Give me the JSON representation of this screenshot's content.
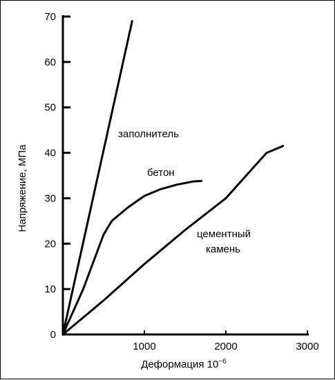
{
  "chart_data": {
    "type": "line",
    "title": "",
    "xlabel": "Деформация 10",
    "xlabel_exponent": "−6",
    "ylabel": "Напряжение, МПа",
    "xlim": [
      0,
      3000
    ],
    "ylim": [
      0,
      70
    ],
    "x_ticks": [
      1000,
      2000,
      3000
    ],
    "y_ticks": [
      0,
      10,
      20,
      30,
      40,
      50,
      60,
      70
    ],
    "grid": false,
    "legend": "none",
    "series": [
      {
        "label": "заполнитель",
        "points": [
          [
            0,
            0
          ],
          [
            850,
            69
          ]
        ]
      },
      {
        "label": "бетон",
        "points": [
          [
            0,
            0
          ],
          [
            250,
            10
          ],
          [
            500,
            22
          ],
          [
            600,
            25
          ],
          [
            800,
            28
          ],
          [
            1000,
            30.5
          ],
          [
            1200,
            32
          ],
          [
            1400,
            33
          ],
          [
            1600,
            33.7
          ],
          [
            1700,
            33.8
          ]
        ]
      },
      {
        "label": "цементный камень",
        "label_lines": [
          "цементный",
          "камень"
        ],
        "points": [
          [
            0,
            0
          ],
          [
            500,
            7.5
          ],
          [
            1000,
            15.5
          ],
          [
            1500,
            23
          ],
          [
            2000,
            30
          ],
          [
            2300,
            36
          ],
          [
            2500,
            40
          ],
          [
            2700,
            41.5
          ]
        ]
      }
    ]
  }
}
